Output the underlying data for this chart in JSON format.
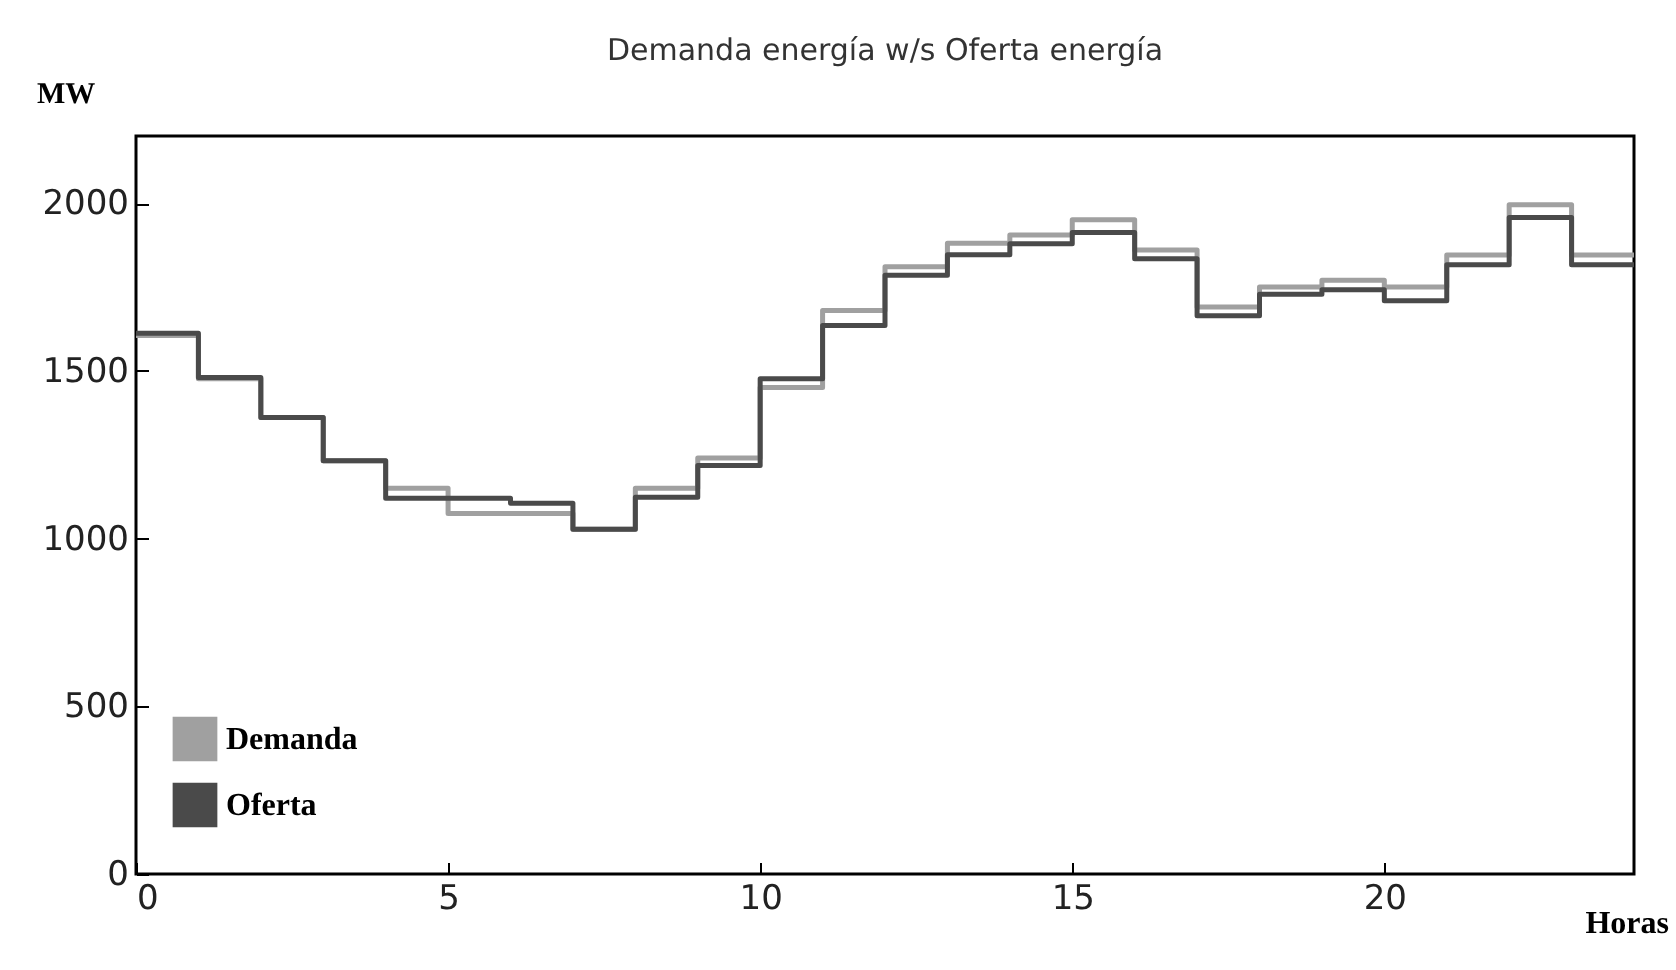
{
  "chart_data": {
    "type": "step",
    "title": "Demanda energía  w/s Oferta energía",
    "xlabel": "Horas",
    "ylabel": "MW",
    "x": [
      0,
      1,
      2,
      3,
      4,
      5,
      6,
      7,
      8,
      9,
      10,
      11,
      12,
      13,
      14,
      15,
      16,
      17,
      18,
      19,
      20,
      21,
      22,
      23,
      24
    ],
    "series": [
      {
        "name": "Demanda",
        "color": "#a0a0a0",
        "values": [
          1605,
          1476,
          1361,
          1232,
          1150,
          1075,
          1075,
          1028,
          1150,
          1240,
          1450,
          1680,
          1810,
          1880,
          1905,
          1950,
          1860,
          1690,
          1750,
          1770,
          1750,
          1845,
          1995,
          1845,
          1845
        ]
      },
      {
        "name": "Oferta",
        "color": "#4a4a4a",
        "values": [
          1612,
          1480,
          1361,
          1232,
          1120,
          1120,
          1105,
          1028,
          1123,
          1218,
          1476,
          1635,
          1785,
          1846,
          1879,
          1912,
          1834,
          1664,
          1728,
          1742,
          1709,
          1816,
          1957,
          1816,
          1816
        ]
      }
    ],
    "xlim": [
      0,
      24
    ],
    "xticks": [
      0,
      5,
      10,
      15,
      20
    ],
    "ylim": [
      0,
      2200
    ],
    "yticks": [
      0,
      500,
      1000,
      1500,
      2000
    ],
    "grid": false,
    "legend": "bottom left",
    "line_style": "solid",
    "marker": "none"
  }
}
